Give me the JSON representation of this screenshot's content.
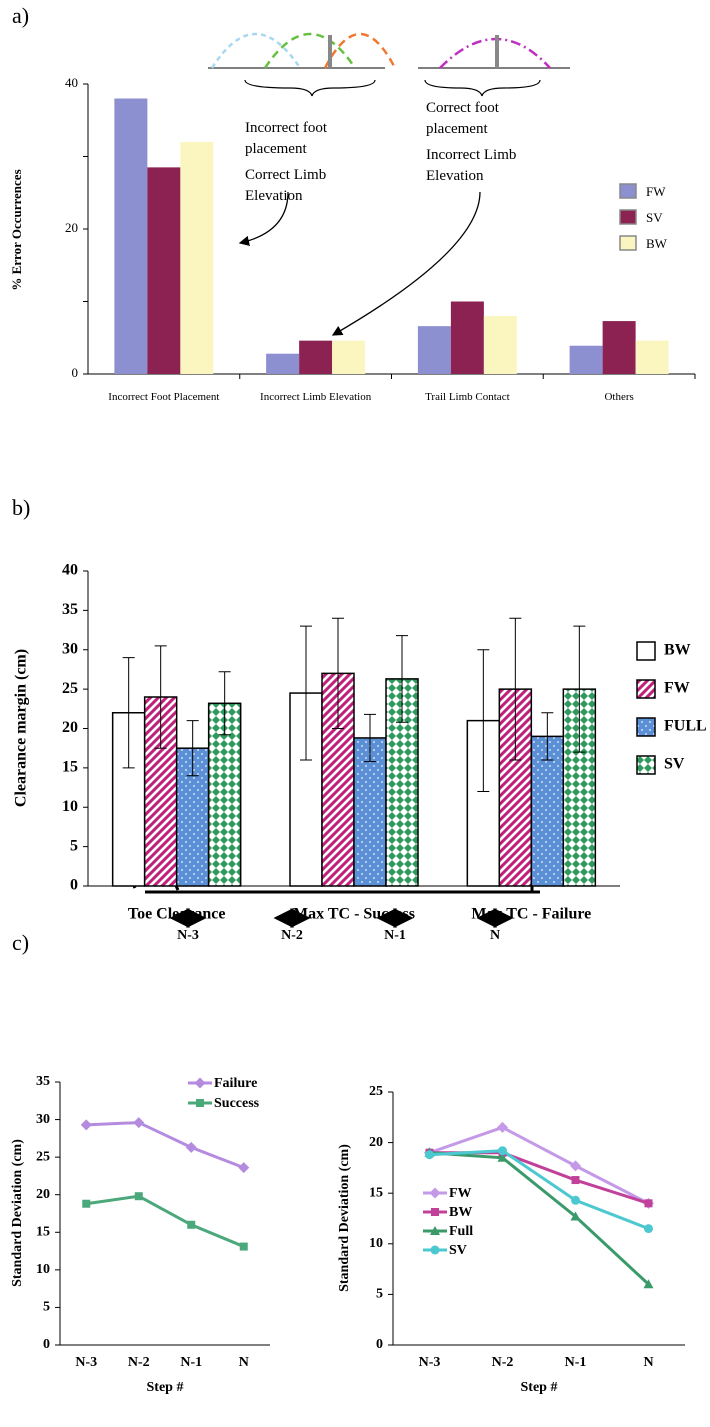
{
  "chart_data": [
    {
      "type": "bar",
      "panel_label": "a)",
      "ylabel": "% Error Occurrences",
      "categories": [
        "Incorrect Foot Placement",
        "Incorrect Limb Elevation",
        "Trail Limb Contact",
        "Others"
      ],
      "series": [
        {
          "name": "FW",
          "color": "#8c8fd0",
          "values": [
            38,
            2.8,
            6.6,
            3.9
          ]
        },
        {
          "name": "SV",
          "color": "#8b2252",
          "values": [
            28.5,
            4.6,
            10,
            7.3
          ]
        },
        {
          "name": "BW",
          "color": "#fbf6c0",
          "values": [
            32,
            4.6,
            8,
            4.6
          ]
        }
      ],
      "ylim": [
        0,
        40
      ],
      "yticks": [
        0,
        20,
        40
      ],
      "minor_yticks": [
        10,
        30
      ],
      "legend": "right",
      "annotations": [
        "Incorrect foot placement",
        "Correct Limb Elevation",
        "Correct foot placement",
        "Incorrect Limb Elevation"
      ]
    },
    {
      "type": "bar",
      "panel_label": "b)",
      "ylabel": "Clearance margin (cm)",
      "categories": [
        "Toe Clearance",
        "Max TC - Success",
        "Max TC - Failure"
      ],
      "series": [
        {
          "name": "BW",
          "color": "#ffffff",
          "pattern": "none",
          "values": [
            22,
            24.5,
            21
          ],
          "errors": [
            7,
            8.5,
            9
          ]
        },
        {
          "name": "FW",
          "color": "#c0207a",
          "pattern": "hatch",
          "values": [
            24,
            27,
            25
          ],
          "errors": [
            6.5,
            7,
            9
          ]
        },
        {
          "name": "FULL",
          "color": "#5b8fd6",
          "pattern": "dots",
          "values": [
            17.5,
            18.8,
            19
          ],
          "errors": [
            3.5,
            3,
            3
          ]
        },
        {
          "name": "SV",
          "color": "#2e9a5e",
          "pattern": "checker",
          "values": [
            23.2,
            26.3,
            25
          ],
          "errors": [
            4,
            5.5,
            8
          ]
        }
      ],
      "ylim": [
        0,
        40
      ],
      "yticks": [
        0,
        5,
        10,
        15,
        20,
        25,
        30,
        35,
        40
      ],
      "legend": "right"
    },
    {
      "type": "line",
      "panel_label": "c)",
      "ylabel": "Standard Deviation (cm)",
      "xlabel": "Step #",
      "categories": [
        "N-3",
        "N-2",
        "N-1",
        "N"
      ],
      "series": [
        {
          "name": "Failure",
          "color": "#b58be0",
          "marker": "diamond",
          "values": [
            29.3,
            29.6,
            26.3,
            23.6
          ]
        },
        {
          "name": "Success",
          "color": "#4aa87a",
          "marker": "square",
          "values": [
            18.8,
            19.8,
            16,
            13.1
          ]
        }
      ],
      "ylim": [
        0,
        35
      ],
      "yticks": [
        0,
        5,
        10,
        15,
        20,
        25,
        30,
        35
      ],
      "legend": "upper right"
    },
    {
      "type": "line",
      "ylabel": "Standard Deviation (cm)",
      "xlabel": "Step #",
      "categories": [
        "N-3",
        "N-2",
        "N-1",
        "N"
      ],
      "series": [
        {
          "name": "FW",
          "color": "#c49ae8",
          "marker": "diamond",
          "values": [
            19,
            21.5,
            17.7,
            14
          ]
        },
        {
          "name": "BW",
          "color": "#c0409a",
          "marker": "square",
          "values": [
            19,
            19,
            16.3,
            14
          ]
        },
        {
          "name": "Full",
          "color": "#3a9a6a",
          "marker": "triangle",
          "values": [
            19,
            18.5,
            12.7,
            6
          ]
        },
        {
          "name": "SV",
          "color": "#4cc8d0",
          "marker": "circle",
          "values": [
            18.8,
            19.2,
            14.3,
            11.5
          ]
        }
      ],
      "ylim": [
        0,
        25
      ],
      "yticks": [
        0,
        5,
        10,
        15,
        20,
        25
      ],
      "legend": "lower left"
    }
  ],
  "step_diagram": {
    "labels": [
      "N-3",
      "N-2",
      "N-1",
      "N"
    ]
  }
}
